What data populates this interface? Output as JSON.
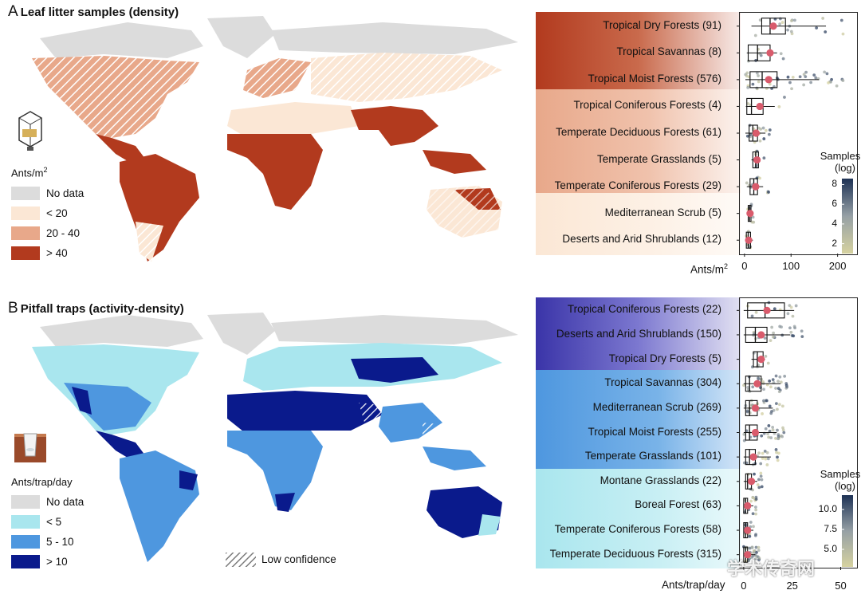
{
  "panel_a": {
    "letter": "A",
    "title": "Leaf litter samples (density)",
    "legend_title_base": "Ants/m",
    "legend_title_sup": "2",
    "legend": [
      {
        "label": "No data",
        "color": "#dcdcdc"
      },
      {
        "label": "< 20",
        "color": "#fbe7d5"
      },
      {
        "label": "20 - 40",
        "color": "#e8a88a"
      },
      {
        "label": "> 40",
        "color": "#b23a1e"
      }
    ]
  },
  "panel_b": {
    "letter": "B",
    "title": "Pitfall traps (activity-density)",
    "legend_title": "Ants/trap/day",
    "legend": [
      {
        "label": "No data",
        "color": "#dcdcdc"
      },
      {
        "label": "< 5",
        "color": "#a9e6ee"
      },
      {
        "label": "5 - 10",
        "color": "#4e97df"
      },
      {
        "label": "> 10",
        "color": "#0a1a8c"
      }
    ],
    "low_confidence_label": "Low confidence"
  },
  "watermark": "学术传奇网",
  "chart_data": [
    {
      "type": "boxplot",
      "panel": "A",
      "xlabel_base": "Ants/m",
      "xlabel_sup": "2",
      "xlim": [
        -10,
        240
      ],
      "xticks": [
        0,
        100,
        200
      ],
      "colorbar": {
        "title": "Samples\n(log)",
        "ticks": [
          2,
          4,
          6,
          8
        ],
        "range": [
          1,
          8.6
        ]
      },
      "categories": [
        {
          "label": "Tropical Dry Forests  (91)",
          "n": 91,
          "group": "> 40",
          "q1": 37,
          "median": 55,
          "q3": 88,
          "whisker_low": 15,
          "whisker_high": 175,
          "mean": 62
        },
        {
          "label": "Tropical Savannas (8)",
          "n": 8,
          "group": "> 40",
          "q1": 8,
          "median": 28,
          "q3": 55,
          "whisker_low": 5,
          "whisker_high": 70,
          "mean": 55
        },
        {
          "label": "Tropical Moist Forests (576)",
          "n": 576,
          "group": "> 40",
          "q1": 12,
          "median": 38,
          "q3": 70,
          "whisker_low": 2,
          "whisker_high": 160,
          "mean": 52
        },
        {
          "label": "Tropical Coniferous Forests (4)",
          "n": 4,
          "group": "20 - 40",
          "q1": 5,
          "median": 15,
          "q3": 40,
          "whisker_low": 3,
          "whisker_high": 65,
          "mean": 33
        },
        {
          "label": "Temperate Deciduous Forests (61)",
          "n": 61,
          "group": "20 - 40",
          "q1": 10,
          "median": 18,
          "q3": 28,
          "whisker_low": 2,
          "whisker_high": 45,
          "mean": 25
        },
        {
          "label": "Temperate Grasslands (5)",
          "n": 5,
          "group": "20 - 40",
          "q1": 18,
          "median": 24,
          "q3": 30,
          "whisker_low": 15,
          "whisker_high": 34,
          "mean": 27
        },
        {
          "label": "Temperate Coniferous Forests (29)",
          "n": 29,
          "group": "20 - 40",
          "q1": 12,
          "median": 20,
          "q3": 28,
          "whisker_low": 5,
          "whisker_high": 40,
          "mean": 24
        },
        {
          "label": "Mediterranean Scrub (5)",
          "n": 5,
          "group": "< 20",
          "q1": 8,
          "median": 11,
          "q3": 14,
          "whisker_low": 6,
          "whisker_high": 16,
          "mean": 12
        },
        {
          "label": "Deserts and Arid Shrublands (12)",
          "n": 12,
          "group": "< 20",
          "q1": 4,
          "median": 8,
          "q3": 13,
          "whisker_low": 2,
          "whisker_high": 18,
          "mean": 9
        }
      ]
    },
    {
      "type": "boxplot",
      "panel": "B",
      "xlabel": "Ants/trap/day",
      "xlim": [
        -2,
        58
      ],
      "xticks": [
        0,
        25,
        50
      ],
      "colorbar": {
        "title": "Samples\n(log)",
        "ticks": [
          5.0,
          7.5,
          10.0
        ],
        "range": [
          2.8,
          11.8
        ]
      },
      "categories": [
        {
          "label": "Tropical Coniferous Forests (22)",
          "n": 22,
          "group": "> 10",
          "q1": 2,
          "median": 11,
          "q3": 21,
          "whisker_low": 0,
          "whisker_high": 26,
          "mean": 12
        },
        {
          "label": "Deserts and Arid Shrublands (150)",
          "n": 150,
          "group": "> 10",
          "q1": 1,
          "median": 6,
          "q3": 12,
          "whisker_low": 0,
          "whisker_high": 24,
          "mean": 9
        },
        {
          "label": "Tropical Dry Forests (5)",
          "n": 5,
          "group": "> 10",
          "q1": 5,
          "median": 7,
          "q3": 10,
          "whisker_low": 4,
          "whisker_high": 11,
          "mean": 9
        },
        {
          "label": "Tropical Savannas (304)",
          "n": 304,
          "group": "5 - 10",
          "q1": 1,
          "median": 3,
          "q3": 9,
          "whisker_low": 0,
          "whisker_high": 19,
          "mean": 7
        },
        {
          "label": "Mediterranean Scrub (269)",
          "n": 269,
          "group": "5 - 10",
          "q1": 1,
          "median": 3,
          "q3": 7,
          "whisker_low": 0,
          "whisker_high": 15,
          "mean": 6
        },
        {
          "label": "Tropical Moist  Forests (255)",
          "n": 255,
          "group": "5 - 10",
          "q1": 1,
          "median": 3,
          "q3": 7,
          "whisker_low": 0,
          "whisker_high": 17,
          "mean": 6
        },
        {
          "label": "Temperate Grasslands (101)",
          "n": 101,
          "group": "5 - 10",
          "q1": 1,
          "median": 3,
          "q3": 6,
          "whisker_low": 0,
          "whisker_high": 14,
          "mean": 5
        },
        {
          "label": "Montane Grasslands (22)",
          "n": 22,
          "group": "< 5",
          "q1": 1,
          "median": 2,
          "q3": 4,
          "whisker_low": 0,
          "whisker_high": 7,
          "mean": 4
        },
        {
          "label": "Boreal Forest (63)",
          "n": 63,
          "group": "< 5",
          "q1": 0,
          "median": 1,
          "q3": 2,
          "whisker_low": 0,
          "whisker_high": 5,
          "mean": 2
        },
        {
          "label": "Temperate Coniferous Forests (58)",
          "n": 58,
          "group": "< 5",
          "q1": 0,
          "median": 1,
          "q3": 2,
          "whisker_low": 0,
          "whisker_high": 5,
          "mean": 2
        },
        {
          "label": "Temperate Deciduous Forests (315)",
          "n": 315,
          "group": "< 5",
          "q1": 0,
          "median": 1,
          "q3": 2,
          "whisker_low": 0,
          "whisker_high": 6,
          "mean": 2
        }
      ]
    }
  ]
}
